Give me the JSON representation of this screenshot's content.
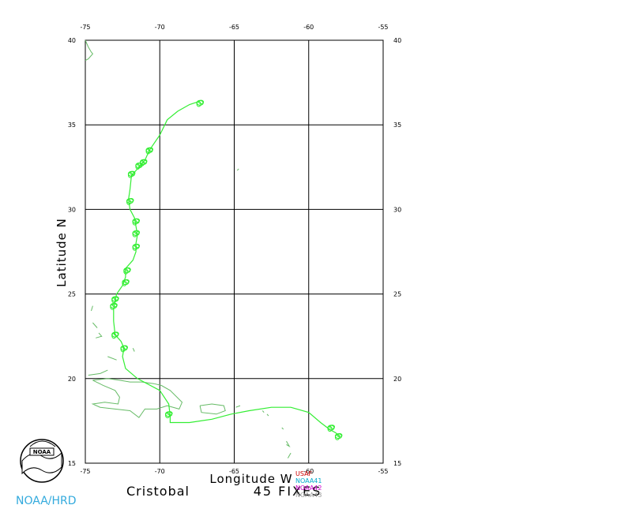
{
  "chart_data": {
    "type": "map-track",
    "ylabel": "Latitude N",
    "xlabel": "Longitude W",
    "x_ticks": [
      "-75",
      "-70",
      "-65",
      "-60",
      "-55"
    ],
    "y_ticks": [
      "40",
      "35",
      "30",
      "25",
      "20",
      "15"
    ],
    "xlim": [
      -75,
      -55
    ],
    "ylim": [
      15,
      40
    ],
    "grid": true,
    "storm_name": "Cristobal",
    "fix_count_label": "45 FIXES",
    "track_color": "#33ee33",
    "coast_color": "#66bb66",
    "legend": [
      {
        "label": "USAF",
        "color": "#cc0000"
      },
      {
        "label": "NOAA41",
        "color": "#00aacc"
      },
      {
        "label": "NOAA42",
        "color": "#cc00cc"
      },
      {
        "label": "NOAA43",
        "color": "#999999"
      }
    ],
    "track": [
      [
        -57.9,
        16.6
      ],
      [
        -58.2,
        16.8
      ],
      [
        -58.6,
        17.0
      ],
      [
        -59.2,
        17.4
      ],
      [
        -60.0,
        18.0
      ],
      [
        -61.2,
        18.3
      ],
      [
        -62.5,
        18.3
      ],
      [
        -64.0,
        18.1
      ],
      [
        -65.2,
        17.9
      ],
      [
        -66.5,
        17.6
      ],
      [
        -68.0,
        17.4
      ],
      [
        -69.3,
        17.4
      ],
      [
        -69.3,
        17.8
      ],
      [
        -69.4,
        18.5
      ],
      [
        -70.0,
        19.3
      ],
      [
        -71.5,
        20.0
      ],
      [
        -72.3,
        20.6
      ],
      [
        -72.5,
        21.3
      ],
      [
        -72.4,
        21.8
      ],
      [
        -72.6,
        22.2
      ],
      [
        -73.0,
        22.6
      ],
      [
        -73.1,
        23.4
      ],
      [
        -73.1,
        24.1
      ],
      [
        -73.0,
        24.6
      ],
      [
        -72.9,
        25.0
      ],
      [
        -72.5,
        25.5
      ],
      [
        -72.3,
        26.0
      ],
      [
        -72.3,
        26.5
      ],
      [
        -71.8,
        27.0
      ],
      [
        -71.6,
        27.5
      ],
      [
        -71.6,
        28.0
      ],
      [
        -71.5,
        28.5
      ],
      [
        -71.6,
        29.0
      ],
      [
        -71.7,
        29.5
      ],
      [
        -72.0,
        30.0
      ],
      [
        -72.1,
        30.6
      ],
      [
        -72.0,
        31.2
      ],
      [
        -71.9,
        32.0
      ],
      [
        -71.6,
        32.3
      ],
      [
        -71.3,
        32.6
      ],
      [
        -71.0,
        32.9
      ],
      [
        -70.7,
        33.5
      ],
      [
        -70.0,
        34.4
      ],
      [
        -69.5,
        35.3
      ],
      [
        -68.8,
        35.8
      ],
      [
        -68.0,
        36.2
      ],
      [
        -67.3,
        36.4
      ]
    ],
    "fix_clusters": [
      [
        -58.0,
        16.6
      ],
      [
        -58.5,
        17.1
      ],
      [
        -69.4,
        17.9
      ],
      [
        -72.4,
        21.8
      ],
      [
        -73.0,
        22.6
      ],
      [
        -73.1,
        24.3
      ],
      [
        -73.0,
        24.7
      ],
      [
        -72.3,
        25.7
      ],
      [
        -72.2,
        26.4
      ],
      [
        -71.6,
        27.8
      ],
      [
        -71.6,
        28.6
      ],
      [
        -71.6,
        29.3
      ],
      [
        -72.0,
        30.5
      ],
      [
        -71.9,
        32.1
      ],
      [
        -71.4,
        32.6
      ],
      [
        -71.1,
        32.8
      ],
      [
        -70.7,
        33.5
      ],
      [
        -67.3,
        36.3
      ]
    ],
    "coastlines": [
      [
        [
          -75.0,
          40.0
        ],
        [
          -74.8,
          39.6
        ],
        [
          -74.6,
          39.3
        ],
        [
          -74.5,
          39.2
        ],
        [
          -74.8,
          38.9
        ],
        [
          -75.0,
          38.8
        ]
      ],
      [
        [
          -64.7,
          32.4
        ],
        [
          -64.8,
          32.3
        ]
      ],
      [
        [
          -74.5,
          19.9
        ],
        [
          -73.5,
          20.0
        ],
        [
          -72.7,
          19.9
        ],
        [
          -72.0,
          19.8
        ],
        [
          -71.2,
          19.8
        ],
        [
          -70.4,
          19.7
        ],
        [
          -69.9,
          19.6
        ],
        [
          -69.3,
          19.3
        ],
        [
          -68.5,
          18.6
        ],
        [
          -68.7,
          18.2
        ],
        [
          -69.5,
          18.4
        ],
        [
          -70.2,
          18.2
        ],
        [
          -71.0,
          18.2
        ],
        [
          -71.4,
          17.7
        ],
        [
          -72.0,
          18.1
        ],
        [
          -73.0,
          18.2
        ],
        [
          -74.0,
          18.3
        ],
        [
          -74.5,
          18.5
        ],
        [
          -73.7,
          18.6
        ],
        [
          -72.8,
          18.5
        ],
        [
          -72.7,
          18.9
        ],
        [
          -73.0,
          19.3
        ],
        [
          -73.8,
          19.6
        ],
        [
          -74.5,
          19.9
        ]
      ],
      [
        [
          -67.3,
          18.4
        ],
        [
          -67.2,
          18.0
        ],
        [
          -66.2,
          17.9
        ],
        [
          -65.6,
          18.1
        ],
        [
          -65.7,
          18.4
        ],
        [
          -66.5,
          18.5
        ],
        [
          -67.3,
          18.4
        ]
      ],
      [
        [
          -64.9,
          18.3
        ],
        [
          -64.6,
          18.4
        ]
      ],
      [
        [
          -61.8,
          17.1
        ],
        [
          -61.7,
          17.0
        ]
      ],
      [
        [
          -61.5,
          16.3
        ],
        [
          -61.3,
          16.0
        ],
        [
          -61.5,
          16.1
        ]
      ],
      [
        [
          -63.1,
          18.1
        ],
        [
          -63.0,
          18.0
        ]
      ],
      [
        [
          -62.8,
          17.9
        ],
        [
          -62.7,
          17.8
        ]
      ],
      [
        [
          -61.2,
          15.6
        ],
        [
          -61.4,
          15.3
        ]
      ],
      [
        [
          -74.1,
          22.7
        ],
        [
          -73.9,
          22.5
        ],
        [
          -74.3,
          22.4
        ]
      ],
      [
        [
          -74.5,
          23.3
        ],
        [
          -74.2,
          23.0
        ]
      ],
      [
        [
          -74.5,
          24.3
        ],
        [
          -74.6,
          24.0
        ]
      ],
      [
        [
          -73.5,
          21.3
        ],
        [
          -72.9,
          21.1
        ]
      ],
      [
        [
          -71.8,
          21.8
        ],
        [
          -71.7,
          21.6
        ]
      ],
      [
        [
          -74.8,
          20.2
        ],
        [
          -74.0,
          20.3
        ],
        [
          -73.5,
          20.5
        ]
      ]
    ]
  },
  "credit": "NOAA/HRD",
  "logo_text": "NOAA"
}
